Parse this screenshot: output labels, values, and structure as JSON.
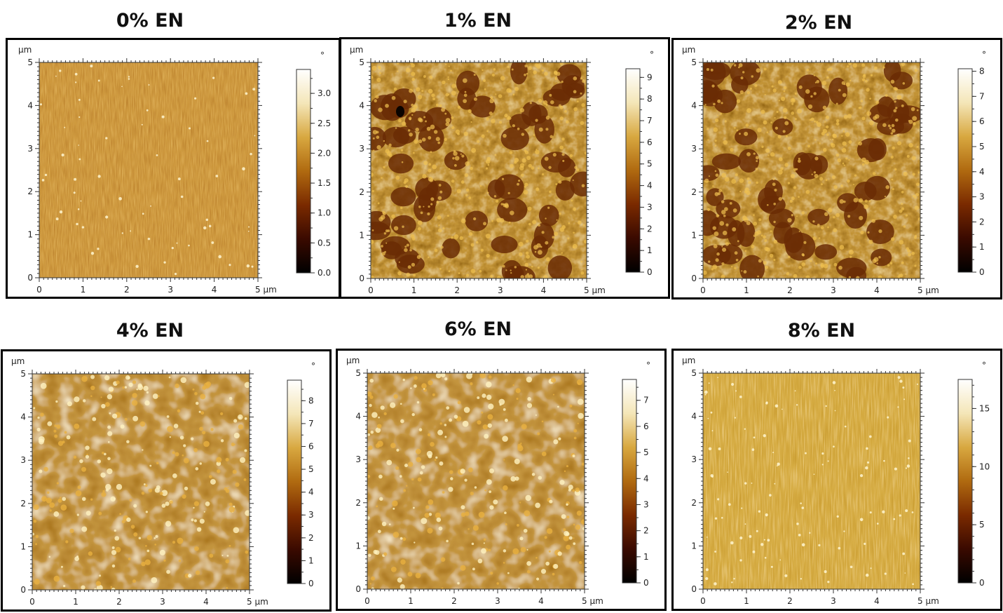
{
  "panels": [
    {
      "title": "0% EN",
      "unit_y": "µm",
      "unit_x": "5 µm",
      "unit_cb": "°",
      "axis_ticks": [
        "0",
        "1",
        "2",
        "3",
        "4"
      ],
      "axis_ticks_y": [
        "0",
        "1",
        "2",
        "3",
        "4",
        "5"
      ],
      "colorbar_ticks": [
        "0.0",
        "0.5",
        "1.0",
        "1.5",
        "2.0",
        "2.5",
        "3.0"
      ],
      "colorbar_max": 3.4,
      "texture": "fine"
    },
    {
      "title": "1% EN",
      "unit_y": "µm",
      "unit_x": "5 µm",
      "unit_cb": "°",
      "axis_ticks": [
        "0",
        "1",
        "2",
        "3",
        "4"
      ],
      "axis_ticks_y": [
        "0",
        "1",
        "2",
        "3",
        "4",
        "5"
      ],
      "colorbar_ticks": [
        "0",
        "1",
        "2",
        "3",
        "4",
        "5",
        "6",
        "7",
        "8",
        "9"
      ],
      "colorbar_max": 9.4,
      "texture": "cells"
    },
    {
      "title": "2% EN",
      "unit_y": "µm",
      "unit_x": "5 µm",
      "unit_cb": "°",
      "axis_ticks": [
        "0",
        "1",
        "2",
        "3",
        "4"
      ],
      "axis_ticks_y": [
        "0",
        "1",
        "2",
        "3",
        "4",
        "5"
      ],
      "colorbar_ticks": [
        "0",
        "1",
        "2",
        "3",
        "4",
        "5",
        "6",
        "7",
        "8"
      ],
      "colorbar_max": 8.1,
      "texture": "cells"
    },
    {
      "title": "4% EN",
      "unit_y": "µm",
      "unit_x": "5 µm",
      "unit_cb": "°",
      "axis_ticks": [
        "0",
        "1",
        "2",
        "3",
        "4"
      ],
      "axis_ticks_y": [
        "0",
        "1",
        "2",
        "3",
        "4",
        "5"
      ],
      "colorbar_ticks": [
        "0",
        "1",
        "2",
        "3",
        "4",
        "5",
        "6",
        "7",
        "8"
      ],
      "colorbar_max": 8.9,
      "texture": "patchy"
    },
    {
      "title": "6% EN",
      "unit_y": "µm",
      "unit_x": "5 µm",
      "unit_cb": "°",
      "axis_ticks": [
        "0",
        "1",
        "2",
        "3",
        "4"
      ],
      "axis_ticks_y": [
        "0",
        "1",
        "2",
        "3",
        "4",
        "5"
      ],
      "colorbar_ticks": [
        "0",
        "1",
        "2",
        "3",
        "4",
        "5",
        "6",
        "7"
      ],
      "colorbar_max": 7.8,
      "texture": "patchy"
    },
    {
      "title": "8% EN",
      "unit_y": "µm",
      "unit_x": "5 µm",
      "unit_cb": "°",
      "axis_ticks": [
        "0",
        "1",
        "2",
        "3",
        "4"
      ],
      "axis_ticks_y": [
        "0",
        "1",
        "2",
        "3",
        "4",
        "5"
      ],
      "colorbar_ticks": [
        "0",
        "5",
        "10",
        "15"
      ],
      "colorbar_max": 17.5,
      "texture": "smooth"
    }
  ],
  "colors": {
    "colorbar_stops": [
      "#000000",
      "#3a0a00",
      "#7a2a00",
      "#b06a10",
      "#d8a840",
      "#f4e6b8",
      "#ffffff"
    ],
    "image_base": "#9a5a10"
  }
}
